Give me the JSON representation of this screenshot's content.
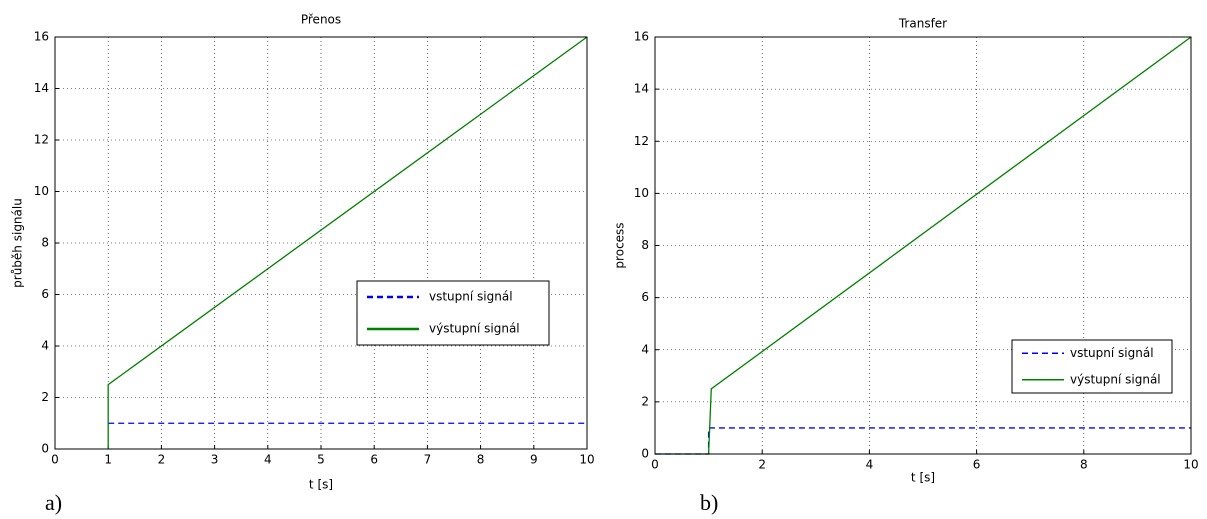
{
  "chart_data": [
    {
      "type": "line",
      "title": "Přenos",
      "xlabel": "t [s]",
      "ylabel": "průběh signálu",
      "panel_label": "a)",
      "xlim": [
        0,
        10
      ],
      "xticks": [
        0,
        1,
        2,
        3,
        4,
        5,
        6,
        7,
        8,
        9,
        10
      ],
      "ylim": [
        0,
        16
      ],
      "yticks": [
        0,
        2,
        4,
        6,
        8,
        10,
        12,
        14,
        16
      ],
      "grid": true,
      "legend": "center right",
      "series": [
        {
          "name": "vstupní signál",
          "color": "#0000ff",
          "linestyle": "dashed",
          "x": [
            1,
            10
          ],
          "values": [
            1,
            1
          ]
        },
        {
          "name": "výstupní signál",
          "color": "#008000",
          "linestyle": "solid",
          "x": [
            1,
            1,
            10
          ],
          "values": [
            0,
            2.5,
            16
          ]
        }
      ]
    },
    {
      "type": "line",
      "title": "Transfer",
      "xlabel": "t [s]",
      "ylabel": "process",
      "panel_label": "b)",
      "xlim": [
        0,
        10
      ],
      "xticks": [
        0,
        2,
        4,
        6,
        8,
        10
      ],
      "ylim": [
        0,
        16
      ],
      "yticks": [
        0,
        2,
        4,
        6,
        8,
        10,
        12,
        14,
        16
      ],
      "grid": true,
      "legend": "lower right",
      "series": [
        {
          "name": "vstupní signál",
          "color": "#0000ff",
          "linestyle": "dashed",
          "x": [
            0,
            1,
            1,
            10
          ],
          "values": [
            0,
            0,
            1,
            1
          ]
        },
        {
          "name": "výstupní signál",
          "color": "#008000",
          "linestyle": "solid",
          "x": [
            0,
            1,
            1.05,
            10
          ],
          "values": [
            0,
            0,
            2.5,
            16
          ]
        }
      ]
    }
  ]
}
